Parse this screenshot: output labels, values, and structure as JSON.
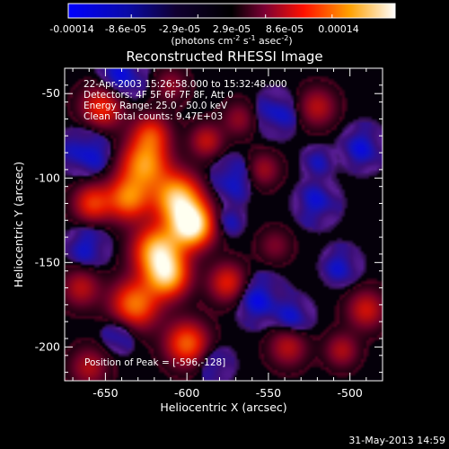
{
  "chart_data": {
    "type": "heatmap",
    "title": "Reconstructed RHESSI Image",
    "xlabel": "Heliocentric X (arcsec)",
    "ylabel": "Heliocentric Y (arcsec)",
    "xlim": [
      -675,
      -480
    ],
    "ylim": [
      -220,
      -35
    ],
    "x_ticks": [
      "-650",
      "-600",
      "-550",
      "-500"
    ],
    "x_tick_values": [
      -650,
      -600,
      -550,
      -500
    ],
    "y_ticks": [
      "-50",
      "-100",
      "-150",
      "-200"
    ],
    "y_tick_values": [
      -50,
      -100,
      -150,
      -200
    ],
    "colorbar": {
      "ticks": [
        "-0.00014",
        "-8.6e-05",
        "-2.9e-05",
        "2.9e-05",
        "8.6e-05",
        "0.00014"
      ],
      "tick_values": [
        -0.00014,
        -8.6e-05,
        -2.9e-05,
        2.9e-05,
        8.6e-05,
        0.00014
      ],
      "range": [
        -0.00014,
        0.00014
      ],
      "unit_prefix": "(photons cm",
      "unit_exp1": "-2",
      "unit_mid": " s",
      "unit_exp2": "-1",
      "unit_end": " asec",
      "unit_exp3": "-2",
      "unit_close": ")"
    },
    "annotations": [
      "22-Apr-2003 15:26:58.000 to 15:32:48.000",
      "Detectors: 4F 5F 6F 7F 8F, Att 0",
      "Energy Range: 25.0 - 50.0 keV",
      "Clean     Total counts: 9.47E+03"
    ],
    "peak_label": "Position of Peak = [-596,-128]",
    "peak": [
      -596,
      -128
    ],
    "sources": [
      {
        "x": -597,
        "y": -128,
        "amp": 1.0,
        "r": 9
      },
      {
        "x": -606,
        "y": -112,
        "amp": 0.8,
        "r": 10
      },
      {
        "x": -618,
        "y": -143,
        "amp": 0.78,
        "r": 10
      },
      {
        "x": -612,
        "y": -158,
        "amp": 0.72,
        "r": 9
      },
      {
        "x": -626,
        "y": -92,
        "amp": 0.66,
        "r": 10
      },
      {
        "x": -636,
        "y": -112,
        "amp": 0.6,
        "r": 9
      },
      {
        "x": -632,
        "y": -175,
        "amp": 0.6,
        "r": 10
      },
      {
        "x": -600,
        "y": -198,
        "amp": 0.55,
        "r": 9
      },
      {
        "x": -652,
        "y": -58,
        "amp": 0.45,
        "r": 9
      },
      {
        "x": -658,
        "y": -115,
        "amp": 0.45,
        "r": 8
      },
      {
        "x": -622,
        "y": -74,
        "amp": 0.42,
        "r": 8
      },
      {
        "x": -575,
        "y": -162,
        "amp": 0.4,
        "r": 8
      },
      {
        "x": -588,
        "y": -78,
        "amp": 0.32,
        "r": 7
      },
      {
        "x": -520,
        "y": -58,
        "amp": 0.3,
        "r": 8
      },
      {
        "x": -490,
        "y": -178,
        "amp": 0.35,
        "r": 8
      },
      {
        "x": -538,
        "y": -200,
        "amp": 0.3,
        "r": 8
      },
      {
        "x": -505,
        "y": -202,
        "amp": 0.28,
        "r": 7
      },
      {
        "x": -553,
        "y": -95,
        "amp": 0.25,
        "r": 7
      },
      {
        "x": -665,
        "y": -165,
        "amp": 0.3,
        "r": 8
      },
      {
        "x": -568,
        "y": -65,
        "amp": 0.22,
        "r": 7
      },
      {
        "x": -610,
        "y": -45,
        "amp": 0.22,
        "r": 7
      },
      {
        "x": -546,
        "y": -140,
        "amp": 0.18,
        "r": 7
      },
      {
        "x": -660,
        "y": -212,
        "amp": 0.28,
        "r": 8
      }
    ],
    "negatives": [
      {
        "x": -640,
        "y": -40,
        "amp": 0.28,
        "r": 9
      },
      {
        "x": -661,
        "y": -84,
        "amp": 0.3,
        "r": 9
      },
      {
        "x": -660,
        "y": -140,
        "amp": 0.25,
        "r": 8
      },
      {
        "x": -641,
        "y": -192,
        "amp": 0.22,
        "r": 7
      },
      {
        "x": -573,
        "y": -100,
        "amp": 0.28,
        "r": 8
      },
      {
        "x": -545,
        "y": -62,
        "amp": 0.26,
        "r": 8
      },
      {
        "x": -555,
        "y": -172,
        "amp": 0.3,
        "r": 9
      },
      {
        "x": -520,
        "y": -115,
        "amp": 0.25,
        "r": 8
      },
      {
        "x": -492,
        "y": -82,
        "amp": 0.26,
        "r": 8
      },
      {
        "x": -505,
        "y": -152,
        "amp": 0.24,
        "r": 7
      },
      {
        "x": -534,
        "y": -182,
        "amp": 0.22,
        "r": 7
      },
      {
        "x": -583,
        "y": -210,
        "amp": 0.2,
        "r": 7
      },
      {
        "x": -575,
        "y": -125,
        "amp": 0.18,
        "r": 6
      },
      {
        "x": -520,
        "y": -90,
        "amp": 0.16,
        "r": 6
      }
    ]
  },
  "footer": {
    "date": "31-May-2013 14:59"
  }
}
